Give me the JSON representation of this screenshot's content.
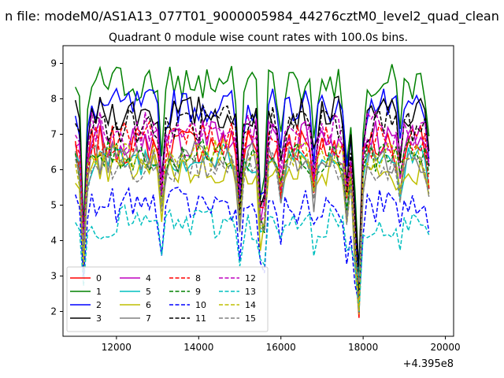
{
  "figure": {
    "suptitle": "n file: modeM0/AS1A13_077T01_9000005984_44276cztM0_level2_quad_clean",
    "title": "Quadrant 0 module wise count rates with 100.0s bins.",
    "x_offset_label": "+4.395e8"
  },
  "chart_data": {
    "type": "line",
    "title": "Quadrant 0 module wise count rates with 100.0s bins.",
    "xlabel": "",
    "ylabel": "",
    "x_offset": 439500000,
    "xlim": [
      10700,
      20200
    ],
    "ylim": [
      1.3,
      9.5
    ],
    "xticks": [
      12000,
      14000,
      16000,
      18000,
      20000
    ],
    "yticks": [
      2,
      3,
      4,
      5,
      6,
      7,
      8,
      9
    ],
    "legend_loc": "lower left",
    "legend_ncol": 4,
    "grid": false,
    "series": [
      {
        "name": "0",
        "color": "#ff0000",
        "dash": "solid",
        "base": 6.7,
        "amp": 0.55,
        "lo": 0.28
      },
      {
        "name": "1",
        "color": "#008000",
        "dash": "solid",
        "base": 8.45,
        "amp": 0.55,
        "lo": 0.3
      },
      {
        "name": "2",
        "color": "#0000ff",
        "dash": "solid",
        "base": 7.8,
        "amp": 0.5,
        "lo": 0.3
      },
      {
        "name": "3",
        "color": "#000000",
        "dash": "solid",
        "base": 7.6,
        "amp": 0.5,
        "lo": 0.32
      },
      {
        "name": "4",
        "color": "#bf00bf",
        "dash": "solid",
        "base": 6.9,
        "amp": 0.55,
        "lo": 0.3
      },
      {
        "name": "5",
        "color": "#00bfbf",
        "dash": "solid",
        "base": 6.3,
        "amp": 0.45,
        "lo": 0.32
      },
      {
        "name": "6",
        "color": "#bfbf00",
        "dash": "solid",
        "base": 6.0,
        "amp": 0.45,
        "lo": 0.33
      },
      {
        "name": "7",
        "color": "#808080",
        "dash": "solid",
        "base": 6.3,
        "amp": 0.5,
        "lo": 0.32
      },
      {
        "name": "8",
        "color": "#ff0000",
        "dash": "dashed",
        "base": 6.85,
        "amp": 0.5,
        "lo": 0.3
      },
      {
        "name": "9",
        "color": "#008000",
        "dash": "dashed",
        "base": 6.4,
        "amp": 0.45,
        "lo": 0.32
      },
      {
        "name": "10",
        "color": "#0000ff",
        "dash": "dashed",
        "base": 5.0,
        "amp": 0.5,
        "lo": 0.3
      },
      {
        "name": "11",
        "color": "#000000",
        "dash": "dashed",
        "base": 7.3,
        "amp": 0.55,
        "lo": 0.3
      },
      {
        "name": "12",
        "color": "#bf00bf",
        "dash": "dashed",
        "base": 7.1,
        "amp": 0.55,
        "lo": 0.3
      },
      {
        "name": "13",
        "color": "#00bfbf",
        "dash": "dashed",
        "base": 4.5,
        "amp": 0.5,
        "lo": 0.45
      },
      {
        "name": "14",
        "color": "#bfbf00",
        "dash": "dashed",
        "base": 6.4,
        "amp": 0.45,
        "lo": 0.32
      },
      {
        "name": "15",
        "color": "#808080",
        "dash": "dashed",
        "base": 6.1,
        "amp": 0.45,
        "lo": 0.32
      }
    ],
    "x_range": [
      11000,
      19650,
      100
    ],
    "dips": [
      {
        "x": 11200,
        "depth": 0.55
      },
      {
        "x": 13100,
        "depth": 0.25
      },
      {
        "x": 15000,
        "depth": 0.4
      },
      {
        "x": 15550,
        "depth": 0.65
      },
      {
        "x": 16000,
        "depth": 0.2
      },
      {
        "x": 16800,
        "depth": 0.2
      },
      {
        "x": 17600,
        "depth": 0.3
      },
      {
        "x": 17800,
        "depth": 0.45
      },
      {
        "x": 17900,
        "depth": 0.75
      },
      {
        "x": 18900,
        "depth": 0.15
      },
      {
        "x": 19650,
        "depth": 0.3
      }
    ]
  }
}
